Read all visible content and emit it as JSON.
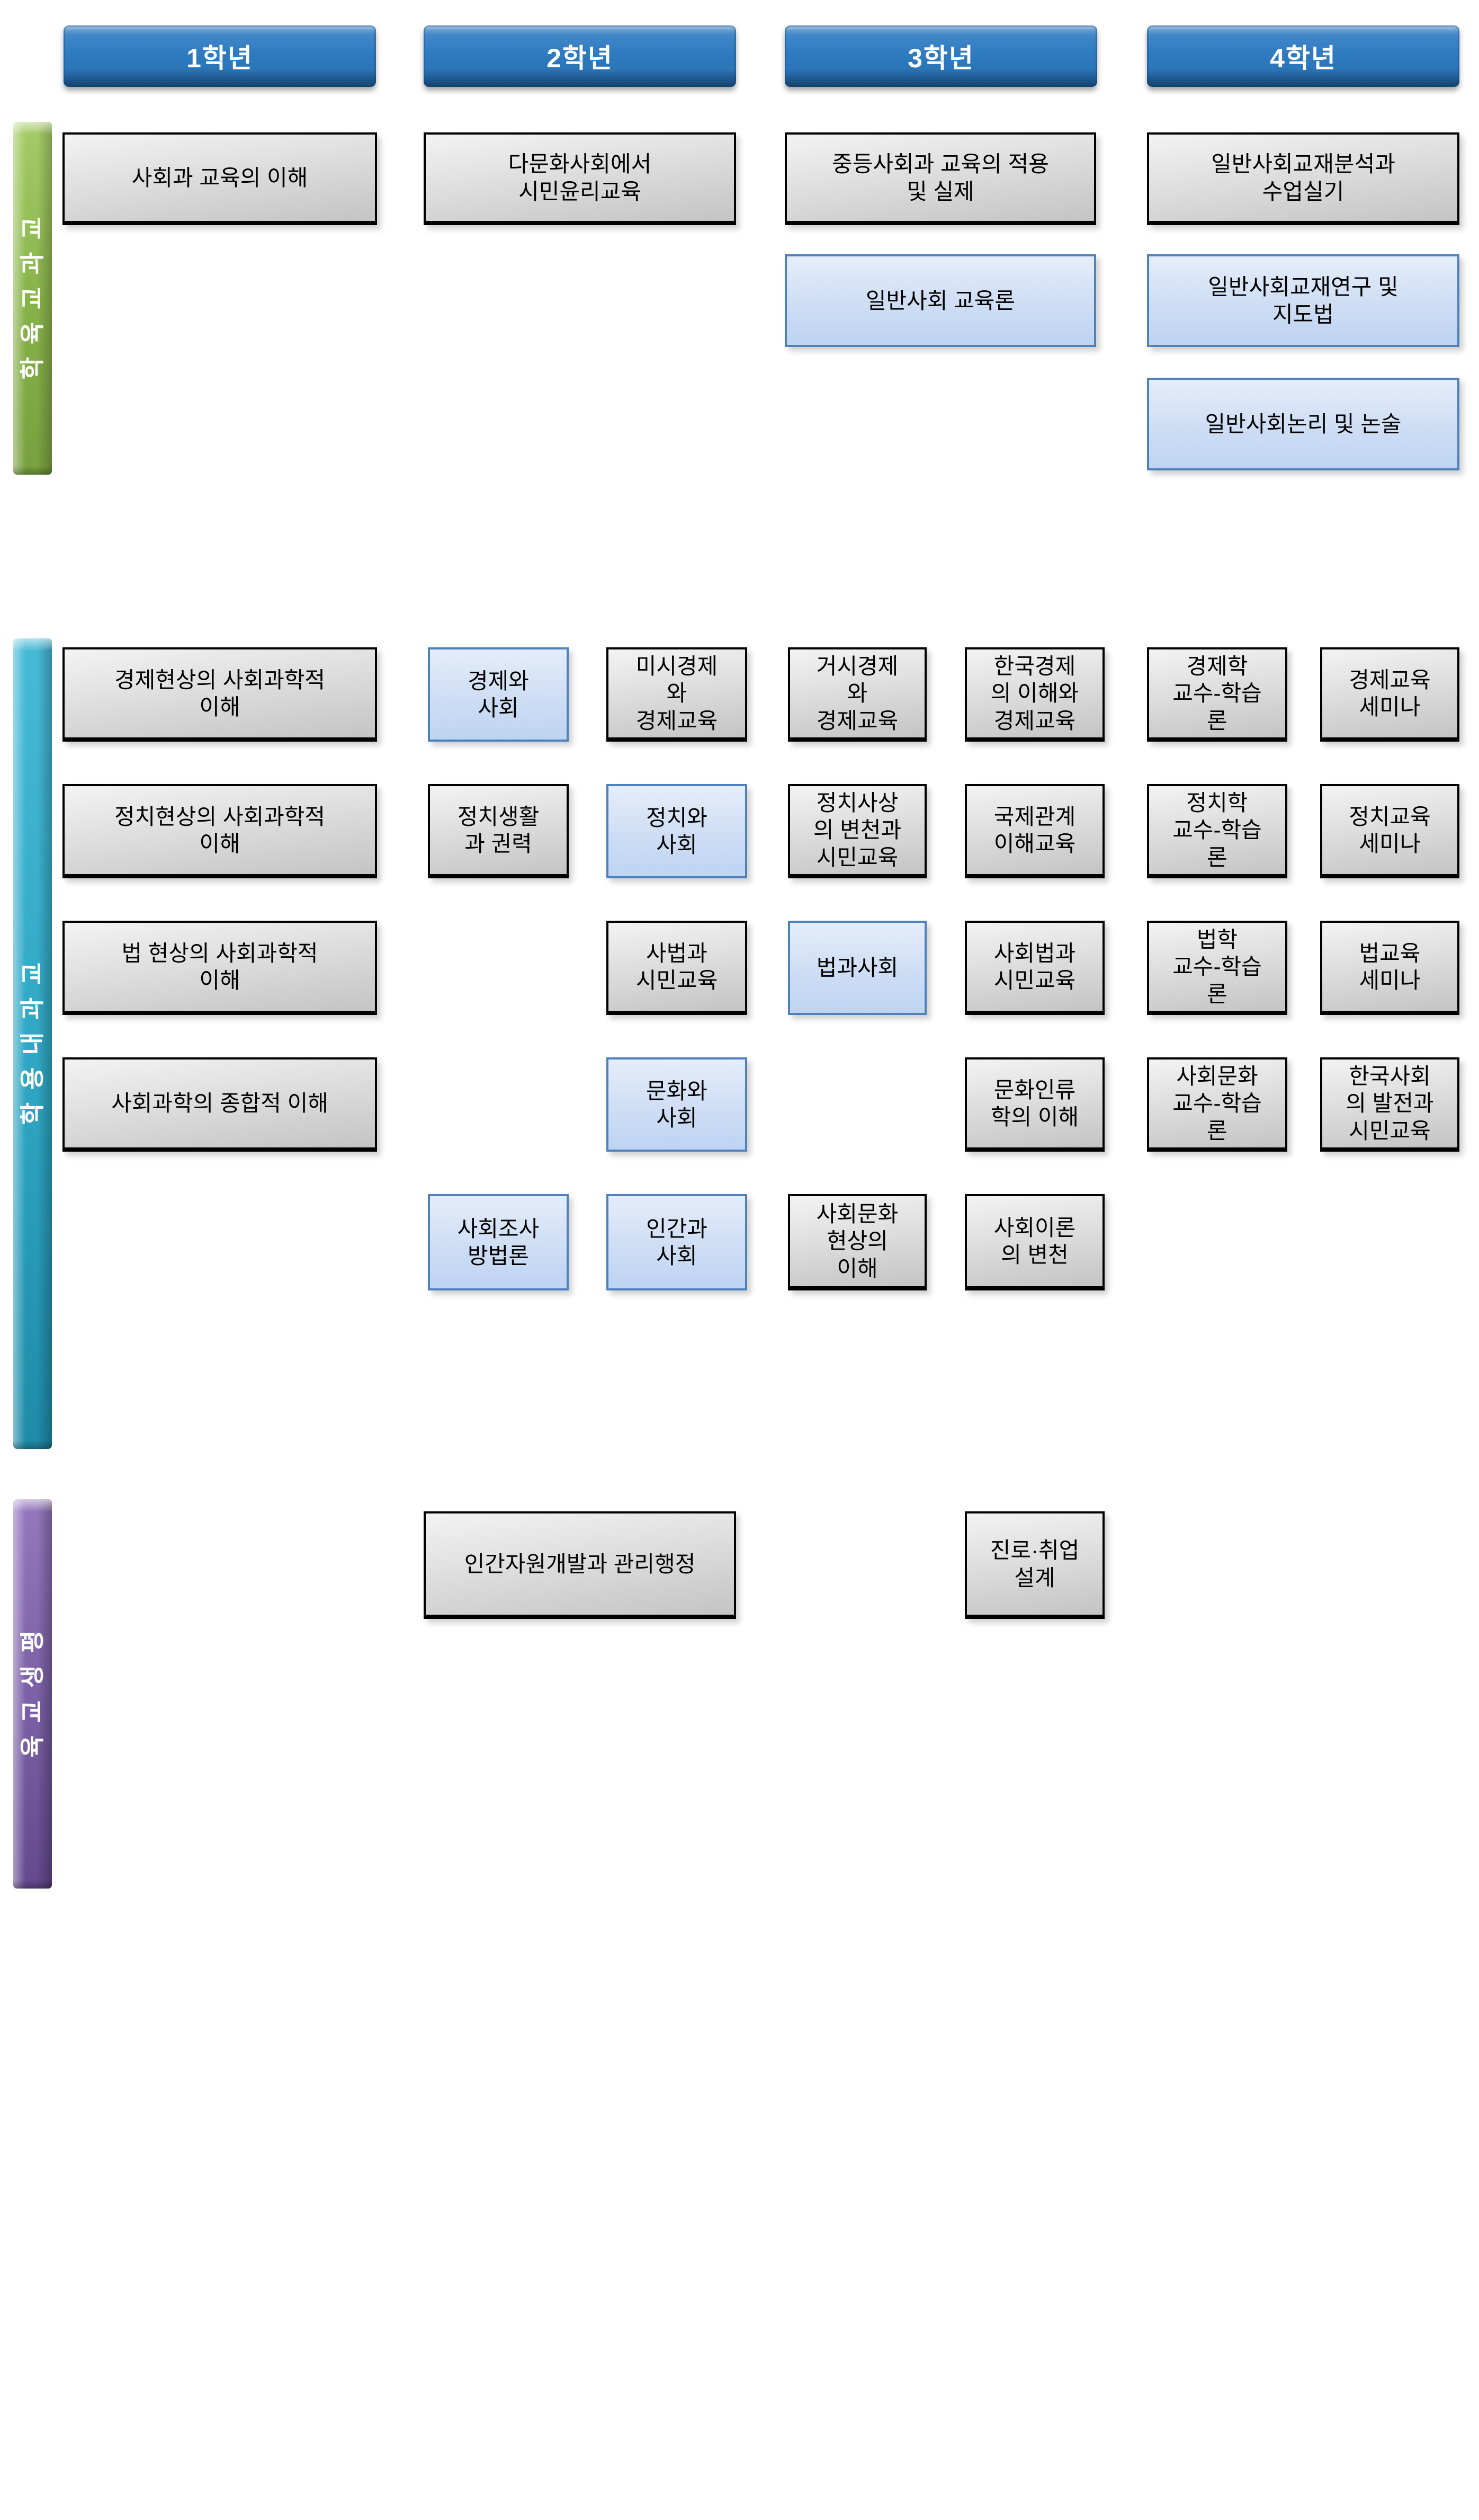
{
  "headers": [
    {
      "label": "1학년"
    },
    {
      "label": "2학년"
    },
    {
      "label": "3학년"
    },
    {
      "label": "4학년"
    }
  ],
  "colors": {
    "header_blue": "#2E7BC0",
    "bar_green": "#8CBA4D",
    "bar_teal": "#2EA6C3",
    "bar_purple": "#7A5FA6",
    "box_gray_fill": "#D9D9D9",
    "box_gray_border": "#000000",
    "box_blue_fill": "#CCDCF4",
    "box_blue_border": "#4F81BD",
    "text": "#000000"
  },
  "sections": [
    {
      "id": "s1",
      "label": "교과교육학",
      "rows": [
        [
          {
            "text": "사회과 교육의 이해",
            "style": "gray",
            "col": "w1"
          },
          {
            "text": "다문화사회에서\n시민윤리교육",
            "style": "gray",
            "col": "w2"
          },
          {
            "text": "중등사회과 교육의 적용\n및 실제",
            "style": "gray",
            "col": "w3"
          },
          {
            "text": "일반사회교재분석과\n수업실기",
            "style": "gray",
            "col": "w4"
          }
        ],
        [
          {
            "text": "일반사회 교육론",
            "style": "blue",
            "col": "w3"
          },
          {
            "text": "일반사회교재연구 및\n지도법",
            "style": "blue",
            "col": "w4"
          }
        ],
        [
          {
            "text": "일반사회논리 및 논술",
            "style": "blue",
            "col": "w4"
          }
        ]
      ]
    },
    {
      "id": "s2",
      "label": "교과내용학",
      "rows": [
        [
          {
            "text": "경제현상의 사회과학적\n이해",
            "style": "gray",
            "col": "w1"
          },
          {
            "text": "경제와\n사회",
            "style": "blue",
            "col": "c2"
          },
          {
            "text": "미시경제\n와\n경제교육",
            "style": "gray",
            "col": "c3"
          },
          {
            "text": "거시경제\n와\n경제교육",
            "style": "gray",
            "col": "c4"
          },
          {
            "text": "한국경제\n의 이해와\n경제교육",
            "style": "gray",
            "col": "c5"
          },
          {
            "text": "경제학\n교수-학습\n론",
            "style": "gray",
            "col": "c6"
          },
          {
            "text": "경제교육\n세미나",
            "style": "gray",
            "col": "c7"
          }
        ],
        [
          {
            "text": "정치현상의 사회과학적\n이해",
            "style": "gray",
            "col": "w1"
          },
          {
            "text": "정치생활\n과 권력",
            "style": "gray",
            "col": "c2"
          },
          {
            "text": "정치와\n사회",
            "style": "blue",
            "col": "c3"
          },
          {
            "text": "정치사상\n의 변천과\n시민교육",
            "style": "gray",
            "col": "c4"
          },
          {
            "text": "국제관계\n이해교육",
            "style": "gray",
            "col": "c5"
          },
          {
            "text": "정치학\n교수-학습\n론",
            "style": "gray",
            "col": "c6"
          },
          {
            "text": "정치교육\n세미나",
            "style": "gray",
            "col": "c7"
          }
        ],
        [
          {
            "text": "법 현상의 사회과학적\n이해",
            "style": "gray",
            "col": "w1"
          },
          {
            "text": "사법과\n시민교육",
            "style": "gray",
            "col": "c3"
          },
          {
            "text": "법과사회",
            "style": "blue",
            "col": "c4"
          },
          {
            "text": "사회법과\n시민교육",
            "style": "gray",
            "col": "c5"
          },
          {
            "text": "법학\n교수-학습\n론",
            "style": "gray",
            "col": "c6"
          },
          {
            "text": "법교육\n세미나",
            "style": "gray",
            "col": "c7"
          }
        ],
        [
          {
            "text": "사회과학의 종합적 이해",
            "style": "gray",
            "col": "w1"
          },
          {
            "text": "문화와\n사회",
            "style": "blue",
            "col": "c3"
          },
          {
            "text": "문화인류\n학의 이해",
            "style": "gray",
            "col": "c5"
          },
          {
            "text": "사회문화\n교수-학습\n론",
            "style": "gray",
            "col": "c6"
          },
          {
            "text": "한국사회\n의 발전과\n시민교육",
            "style": "gray",
            "col": "c7"
          }
        ],
        [
          {
            "text": "사회조사\n방법론",
            "style": "blue",
            "col": "c2"
          },
          {
            "text": "인간과\n사회",
            "style": "blue",
            "col": "c3"
          },
          {
            "text": "사회문화\n현상의\n이해",
            "style": "gray",
            "col": "c4"
          },
          {
            "text": "사회이론\n의 변천",
            "style": "gray",
            "col": "c5"
          }
        ]
      ]
    },
    {
      "id": "s3",
      "label": "평생교육",
      "rows": [
        [
          {
            "text": "인간자원개발과 관리행정",
            "style": "gray",
            "col": "w2"
          },
          {
            "text": "진로·취업\n설계",
            "style": "gray",
            "col": "c5"
          }
        ]
      ]
    }
  ]
}
